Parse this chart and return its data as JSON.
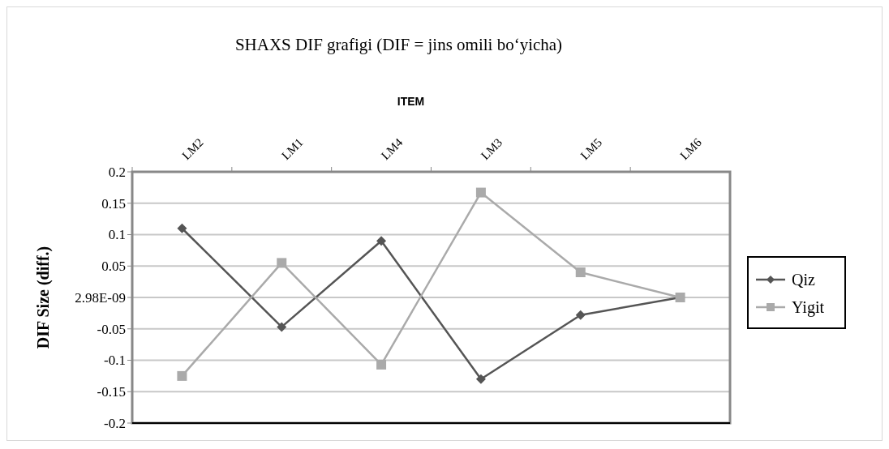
{
  "chart_data": {
    "type": "line",
    "title": "SHAXS DIF grafigi (DIF = jins omili bo‘yicha)",
    "xlabel": "ITEM",
    "ylabel": "DIF Size (diff.)",
    "categories": [
      "LM2",
      "LM1",
      "LM4",
      "LM3",
      "LM5",
      "LM6"
    ],
    "series": [
      {
        "name": "Qiz",
        "color": "#555555",
        "marker": "diamond",
        "values": [
          0.11,
          -0.047,
          0.09,
          -0.13,
          -0.028,
          0
        ]
      },
      {
        "name": "Yigit",
        "color": "#aaaaaa",
        "marker": "square",
        "values": [
          -0.125,
          0.055,
          -0.107,
          0.167,
          0.04,
          0
        ]
      }
    ],
    "ylim": [
      -0.2,
      0.2
    ],
    "yticks": [
      -0.2,
      -0.15,
      -0.1,
      -0.05,
      {
        "value": 2.98e-09,
        "label": "2.98E-09"
      },
      0.05,
      0.1,
      0.15,
      0.2
    ],
    "grid": "y",
    "legend": "right"
  }
}
